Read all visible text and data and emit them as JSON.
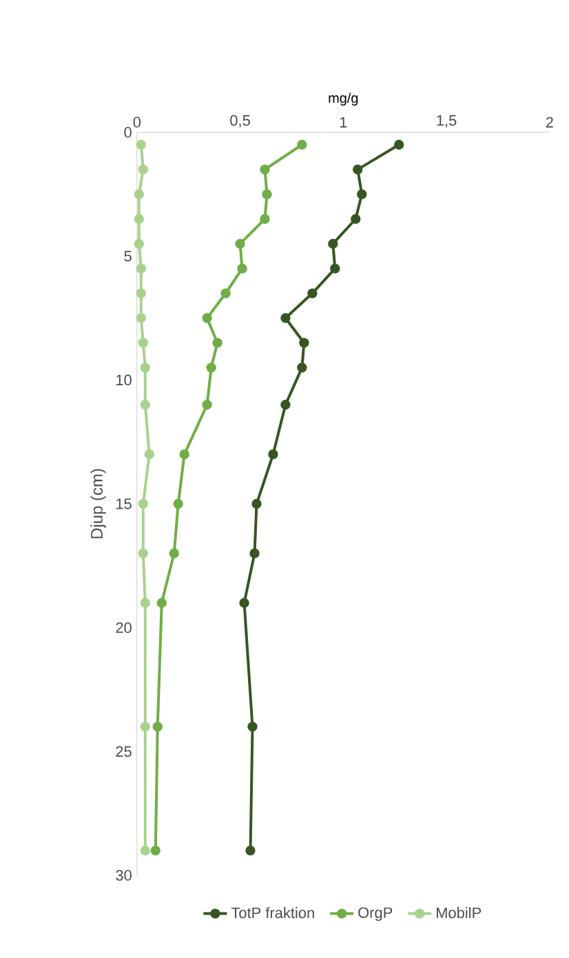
{
  "chart_data": {
    "type": "line",
    "xlabel": "mg/g",
    "ylabel": "Djup (cm)",
    "xlim": [
      0,
      2
    ],
    "xticks": [
      0,
      {
        "value": 0.5,
        "label": "0,5"
      },
      1,
      {
        "value": 1.5,
        "label": "1,5"
      },
      2
    ],
    "ylim": [
      30,
      0
    ],
    "yticks": [
      0,
      5,
      10,
      15,
      20,
      25,
      30
    ],
    "grid": false,
    "legend": "bottom",
    "marker": "circle",
    "line_style": "solid",
    "series": [
      {
        "name": "TotP fraktion",
        "color": "#375623",
        "x": [
          1.27,
          1.07,
          1.09,
          1.06,
          0.95,
          0.96,
          0.85,
          0.72,
          0.81,
          0.8,
          0.72,
          0.66,
          0.58,
          0.57,
          0.52,
          0.56,
          0.55
        ],
        "values": [
          0.5,
          1.5,
          2.5,
          3.5,
          4.5,
          5.5,
          6.5,
          7.5,
          8.5,
          9.5,
          11,
          13,
          15,
          17,
          19,
          24,
          29
        ]
      },
      {
        "name": "OrgP",
        "color": "#70ad47",
        "x": [
          0.8,
          0.62,
          0.63,
          0.62,
          0.5,
          0.51,
          0.43,
          0.34,
          0.39,
          0.36,
          0.34,
          0.23,
          0.2,
          0.18,
          0.12,
          0.1,
          0.09
        ],
        "values": [
          0.5,
          1.5,
          2.5,
          3.5,
          4.5,
          5.5,
          6.5,
          7.5,
          8.5,
          9.5,
          11,
          13,
          15,
          17,
          19,
          24,
          29
        ]
      },
      {
        "name": "MobilP",
        "color": "#a9d18e",
        "x": [
          0.02,
          0.03,
          0.01,
          0.01,
          0.01,
          0.02,
          0.02,
          0.02,
          0.03,
          0.04,
          0.04,
          0.06,
          0.03,
          0.03,
          0.04,
          0.04,
          0.04
        ],
        "values": [
          0.5,
          1.5,
          2.5,
          3.5,
          4.5,
          5.5,
          6.5,
          7.5,
          8.5,
          9.5,
          11,
          13,
          15,
          17,
          19,
          24,
          29
        ]
      }
    ]
  }
}
